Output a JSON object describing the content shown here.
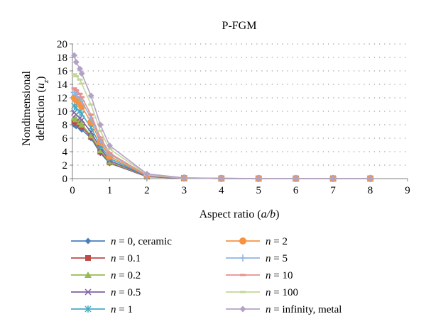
{
  "chart_data": {
    "type": "line",
    "title": "P-FGM",
    "xlabel": "Aspect ratio (a/b)",
    "xlabel_parts": [
      "Aspect ratio (",
      "a/b",
      ")"
    ],
    "ylabel_line1": "Nondimensional",
    "ylabel_line2_parts": [
      "deflection (",
      "u",
      "z",
      ")"
    ],
    "xlim": [
      0,
      9
    ],
    "ylim": [
      0,
      20
    ],
    "x_ticks": [
      0,
      1,
      2,
      3,
      4,
      5,
      6,
      7,
      8,
      9
    ],
    "y_ticks": [
      0,
      2,
      4,
      6,
      8,
      10,
      12,
      14,
      16,
      18,
      20
    ],
    "grid": "horizontal dotted",
    "legend_position": "bottom",
    "x": [
      0.05,
      0.1,
      0.2,
      0.25,
      0.5,
      0.75,
      1,
      2,
      3,
      4,
      5,
      6,
      7,
      8
    ],
    "series": [
      {
        "name": "n = 0, ceramic",
        "color": "#4a7ebb",
        "marker": "diamond",
        "values": [
          8.0,
          7.8,
          7.6,
          7.3,
          6.0,
          3.8,
          2.3,
          0.3,
          0.05,
          0.02,
          0.01,
          0.01,
          0.01,
          0.01
        ]
      },
      {
        "name": "n = 0.1",
        "color": "#be4b48",
        "marker": "square",
        "values": [
          8.5,
          8.3,
          8.0,
          7.7,
          6.2,
          4.0,
          2.4,
          0.3,
          0.05,
          0.02,
          0.01,
          0.01,
          0.01,
          0.01
        ]
      },
      {
        "name": "n = 0.2",
        "color": "#98b954",
        "marker": "triangle",
        "values": [
          9.0,
          8.8,
          8.4,
          8.0,
          6.4,
          4.2,
          2.5,
          0.35,
          0.06,
          0.02,
          0.01,
          0.01,
          0.01,
          0.01
        ]
      },
      {
        "name": "n = 0.5",
        "color": "#7d60a0",
        "marker": "x",
        "values": [
          9.8,
          9.5,
          9.0,
          8.7,
          6.9,
          4.5,
          2.7,
          0.35,
          0.06,
          0.02,
          0.01,
          0.01,
          0.01,
          0.01
        ]
      },
      {
        "name": "n = 1",
        "color": "#46aac5",
        "marker": "star",
        "values": [
          10.8,
          10.5,
          10.0,
          9.6,
          7.6,
          4.9,
          3.0,
          0.4,
          0.07,
          0.02,
          0.01,
          0.01,
          0.01,
          0.01
        ]
      },
      {
        "name": "n = 2",
        "color": "#f69240",
        "marker": "circle",
        "values": [
          12.0,
          11.7,
          11.2,
          10.7,
          8.4,
          5.4,
          3.3,
          0.45,
          0.08,
          0.03,
          0.01,
          0.01,
          0.01,
          0.01
        ]
      },
      {
        "name": "n = 5",
        "color": "#8eb4e3",
        "marker": "plus",
        "values": [
          12.8,
          12.5,
          12.0,
          11.5,
          9.0,
          5.8,
          3.6,
          0.5,
          0.08,
          0.03,
          0.01,
          0.01,
          0.01,
          0.01
        ]
      },
      {
        "name": "n = 10",
        "color": "#e6908e",
        "marker": "dash",
        "values": [
          13.4,
          13.1,
          12.6,
          12.1,
          9.5,
          6.1,
          3.8,
          0.5,
          0.09,
          0.03,
          0.01,
          0.01,
          0.01,
          0.01
        ]
      },
      {
        "name": "n = 100",
        "color": "#c3d69b",
        "marker": "dash",
        "values": [
          15.5,
          15.2,
          14.7,
          14.1,
          11.0,
          7.1,
          4.4,
          0.6,
          0.1,
          0.03,
          0.01,
          0.01,
          0.01,
          0.01
        ]
      },
      {
        "name": "n = infinity, metal",
        "color": "#b3a2c7",
        "marker": "diamond",
        "values": [
          18.3,
          17.3,
          16.3,
          15.6,
          12.3,
          8.0,
          4.9,
          0.7,
          0.12,
          0.04,
          0.01,
          0.01,
          0.01,
          0.01
        ]
      }
    ]
  }
}
